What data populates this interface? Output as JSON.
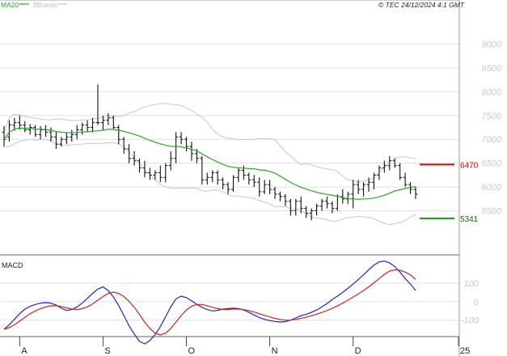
{
  "header": {
    "ma_label": "MA20",
    "bb_label": "BBands",
    "copyright": "© TEC 24/12/2024 4:1 GMT"
  },
  "colors": {
    "ma": "#22aa22",
    "bbands": "#c8c8c8",
    "price": "#111111",
    "macd": "#2222cc",
    "signal": "#cc2222",
    "resistance": "#dd0000",
    "support": "#00aa00",
    "grid": "#e0e0e0"
  },
  "chart_data": [
    {
      "type": "ohlc",
      "ylim": [
        5000,
        9500
      ],
      "y_ticks": [
        5500,
        6000,
        6500,
        7000,
        7500,
        8000,
        8500,
        9000
      ],
      "y_tick_labels": [
        "5500",
        "6000",
        "6500",
        "7000",
        "7500",
        "8000",
        "8500",
        "9000"
      ],
      "x_ticks": [
        {
          "index": 3,
          "label": "A"
        },
        {
          "index": 19,
          "label": "S"
        },
        {
          "index": 35,
          "label": "O"
        },
        {
          "index": 51,
          "label": "N"
        },
        {
          "index": 67,
          "label": "D"
        },
        {
          "index": 84,
          "label": "25"
        }
      ],
      "levels": [
        {
          "name": "resistance",
          "value": 6470,
          "label": "6470"
        },
        {
          "name": "support",
          "value": 5341,
          "label": "5341"
        }
      ],
      "bars": [
        [
          7150,
          7280,
          6850,
          7000
        ],
        [
          7050,
          7400,
          6950,
          7300
        ],
        [
          7300,
          7450,
          7180,
          7350
        ],
        [
          7350,
          7500,
          7200,
          7300
        ],
        [
          7300,
          7380,
          7150,
          7200
        ],
        [
          7200,
          7320,
          7100,
          7250
        ],
        [
          7250,
          7300,
          7050,
          7100
        ],
        [
          7100,
          7280,
          7000,
          7200
        ],
        [
          7200,
          7300,
          7050,
          7150
        ],
        [
          7150,
          7250,
          6950,
          7050
        ],
        [
          7050,
          7150,
          6800,
          6900
        ],
        [
          6900,
          7050,
          6850,
          7000
        ],
        [
          7000,
          7150,
          6900,
          7050
        ],
        [
          7050,
          7200,
          6950,
          7100
        ],
        [
          7100,
          7300,
          7000,
          7200
        ],
        [
          7200,
          7350,
          7100,
          7300
        ],
        [
          7300,
          7400,
          7150,
          7250
        ],
        [
          7250,
          7450,
          7150,
          7350
        ],
        [
          7350,
          8150,
          7300,
          7350
        ],
        [
          7350,
          7500,
          7200,
          7400
        ],
        [
          7400,
          7550,
          7300,
          7450
        ],
        [
          7450,
          7500,
          7200,
          7250
        ],
        [
          7250,
          7300,
          6900,
          7000
        ],
        [
          7000,
          7050,
          6700,
          6800
        ],
        [
          6800,
          6900,
          6500,
          6600
        ],
        [
          6600,
          6750,
          6450,
          6550
        ],
        [
          6550,
          6600,
          6300,
          6400
        ],
        [
          6400,
          6550,
          6200,
          6300
        ],
        [
          6300,
          6400,
          6150,
          6250
        ],
        [
          6250,
          6350,
          6150,
          6300
        ],
        [
          6300,
          6450,
          6100,
          6200
        ],
        [
          6200,
          6500,
          6100,
          6450
        ],
        [
          6450,
          6750,
          6350,
          6600
        ],
        [
          6600,
          7150,
          6500,
          7050
        ],
        [
          7050,
          7150,
          6900,
          7000
        ],
        [
          7000,
          7050,
          6750,
          6850
        ],
        [
          6850,
          6950,
          6550,
          6700
        ],
        [
          6700,
          6800,
          6500,
          6600
        ],
        [
          6600,
          6650,
          6050,
          6150
        ],
        [
          6150,
          6300,
          6050,
          6200
        ],
        [
          6200,
          6350,
          6100,
          6300
        ],
        [
          6300,
          6350,
          6050,
          6150
        ],
        [
          6150,
          6200,
          5950,
          6050
        ],
        [
          6050,
          6100,
          5850,
          5950
        ],
        [
          5950,
          6250,
          5900,
          6200
        ],
        [
          6200,
          6400,
          6100,
          6350
        ],
        [
          6350,
          6450,
          6150,
          6250
        ],
        [
          6250,
          6300,
          6050,
          6150
        ],
        [
          6150,
          6250,
          6000,
          6100
        ],
        [
          6100,
          6200,
          5800,
          5900
        ],
        [
          5900,
          6150,
          5850,
          6050
        ],
        [
          6050,
          6150,
          5850,
          5950
        ],
        [
          5950,
          6000,
          5750,
          5850
        ],
        [
          5850,
          5900,
          5700,
          5800
        ],
        [
          5800,
          5850,
          5600,
          5700
        ],
        [
          5700,
          5750,
          5400,
          5500
        ],
        [
          5500,
          5750,
          5400,
          5700
        ],
        [
          5700,
          5800,
          5450,
          5550
        ],
        [
          5550,
          5600,
          5350,
          5450
        ],
        [
          5450,
          5550,
          5300,
          5500
        ],
        [
          5500,
          5650,
          5400,
          5600
        ],
        [
          5600,
          5750,
          5500,
          5700
        ],
        [
          5700,
          5800,
          5550,
          5650
        ],
        [
          5650,
          5700,
          5450,
          5550
        ],
        [
          5550,
          5850,
          5500,
          5800
        ],
        [
          5800,
          5950,
          5650,
          5750
        ],
        [
          5750,
          5900,
          5650,
          5850
        ],
        [
          5850,
          6150,
          5550,
          6050
        ],
        [
          6050,
          6150,
          5850,
          5950
        ],
        [
          5950,
          6100,
          5800,
          6050
        ],
        [
          6050,
          6200,
          5900,
          6100
        ],
        [
          6100,
          6300,
          5950,
          6250
        ],
        [
          6250,
          6450,
          6150,
          6400
        ],
        [
          6400,
          6550,
          6300,
          6450
        ],
        [
          6450,
          6650,
          6350,
          6550
        ],
        [
          6550,
          6600,
          6400,
          6450
        ],
        [
          6450,
          6500,
          6150,
          6200
        ],
        [
          6200,
          6300,
          6000,
          6050
        ],
        [
          6050,
          6100,
          5850,
          5950
        ],
        [
          5950,
          6000,
          5750,
          5850
        ]
      ]
    },
    {
      "type": "line",
      "title": "MACD",
      "ylim": [
        -180,
        240
      ],
      "y_ticks": [
        -100,
        0,
        100
      ],
      "y_tick_labels": [
        "-100",
        "0",
        "100"
      ],
      "x_index_range": [
        0,
        79
      ],
      "series": [
        {
          "key": "macd",
          "values": [
            -150,
            -125,
            -95,
            -65,
            -40,
            -25,
            -15,
            -8,
            -5,
            -8,
            -18,
            -35,
            -48,
            -42,
            -28,
            -8,
            18,
            45,
            68,
            80,
            60,
            25,
            -20,
            -75,
            -130,
            -175,
            -215,
            -228,
            -210,
            -178,
            -135,
            -82,
            -28,
            15,
            30,
            22,
            5,
            -15,
            -30,
            -43,
            -50,
            -47,
            -40,
            -37,
            -35,
            -37,
            -45,
            -58,
            -72,
            -86,
            -96,
            -102,
            -107,
            -110,
            -108,
            -100,
            -88,
            -76,
            -68,
            -58,
            -45,
            -28,
            -10,
            12,
            30,
            50,
            72,
            95,
            120,
            145,
            172,
            198,
            215,
            220,
            210,
            190,
            160,
            125,
            95,
            60
          ]
        },
        {
          "key": "signal",
          "values": [
            -150,
            -140,
            -125,
            -105,
            -85,
            -65,
            -50,
            -38,
            -28,
            -22,
            -22,
            -26,
            -34,
            -40,
            -42,
            -38,
            -28,
            -12,
            8,
            28,
            45,
            52,
            45,
            28,
            2,
            -30,
            -70,
            -110,
            -145,
            -170,
            -180,
            -170,
            -145,
            -110,
            -75,
            -45,
            -25,
            -15,
            -15,
            -22,
            -30,
            -38,
            -42,
            -42,
            -40,
            -40,
            -43,
            -48,
            -56,
            -65,
            -74,
            -82,
            -90,
            -96,
            -100,
            -100,
            -96,
            -90,
            -84,
            -76,
            -68,
            -58,
            -48,
            -36,
            -22,
            -8,
            8,
            25,
            42,
            60,
            80,
            102,
            125,
            148,
            165,
            172,
            170,
            160,
            145,
            120
          ]
        }
      ]
    }
  ]
}
